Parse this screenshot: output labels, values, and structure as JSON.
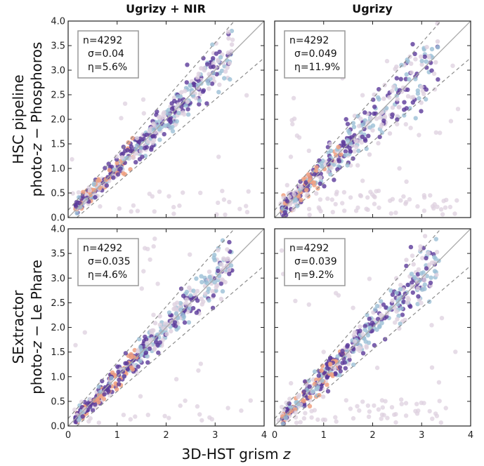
{
  "columns": [
    "Ugrizy + NIR",
    "Ugrizy"
  ],
  "rows": [
    {
      "line1": "HSC pipeline",
      "line2_pre": "photo-",
      "line2_var": "z",
      "line2_post": " − Phosphoros"
    },
    {
      "line1": "SExtractor",
      "line2_pre": "photo-",
      "line2_var": "z",
      "line2_post": " − Le Phare"
    }
  ],
  "xlabel": {
    "pre": "3D-HST grism ",
    "var": "z"
  },
  "colors": {
    "one_to_one": "#a8a8a8",
    "outlier_bounds": "#8c8c8c",
    "density_low": "#ddd0df",
    "density_mid": "#9bbfd6",
    "density_high": "#5b3a9a",
    "density_peak": "#f0a080"
  },
  "chart_data": [
    {
      "type": "scatter",
      "panel": "HSC pipeline / Ugrizy + NIR",
      "n": "n=4292",
      "sigma": "σ=0.04",
      "eta": "η=5.6%",
      "xlim": [
        0,
        4
      ],
      "ylim": [
        0,
        4
      ],
      "xticks": [
        0,
        1,
        2,
        3,
        4
      ],
      "yticks": [
        "0.0",
        "0.5",
        "1.0",
        "1.5",
        "2.0",
        "2.5",
        "3.0",
        "3.5",
        "4.0"
      ],
      "xticklabels_shown": false,
      "yticklabels_shown": true
    },
    {
      "type": "scatter",
      "panel": "HSC pipeline / Ugrizy",
      "n": "n=4292",
      "sigma": "σ=0.049",
      "eta": "η=11.9%",
      "xlim": [
        0,
        4
      ],
      "ylim": [
        0,
        4
      ],
      "xticks": [
        0,
        1,
        2,
        3,
        4
      ],
      "yticks": [
        "0.0",
        "0.5",
        "1.0",
        "1.5",
        "2.0",
        "2.5",
        "3.0",
        "3.5",
        "4.0"
      ],
      "xticklabels_shown": false,
      "yticklabels_shown": false
    },
    {
      "type": "scatter",
      "panel": "SExtractor / Ugrizy + NIR",
      "n": "n=4292",
      "sigma": "σ=0.035",
      "eta": "η=4.6%",
      "xlim": [
        0,
        4
      ],
      "ylim": [
        0,
        4
      ],
      "xticks": [
        "0",
        "1",
        "2",
        "3",
        "4"
      ],
      "yticks": [
        "0.0",
        "0.5",
        "1.0",
        "1.5",
        "2.0",
        "2.5",
        "3.0",
        "3.5",
        "4.0"
      ],
      "xticklabels_shown": true,
      "yticklabels_shown": true
    },
    {
      "type": "scatter",
      "panel": "SExtractor / Ugrizy",
      "n": "n=4292",
      "sigma": "σ=0.039",
      "eta": "η=9.2%",
      "xlim": [
        0,
        4
      ],
      "ylim": [
        0,
        4
      ],
      "xticks": [
        "0",
        "1",
        "2",
        "3",
        "4"
      ],
      "yticks": [
        "0.0",
        "0.5",
        "1.0",
        "1.5",
        "2.0",
        "2.5",
        "3.0",
        "3.5",
        "4.0"
      ],
      "xticklabels_shown": true,
      "yticklabels_shown": false
    }
  ]
}
